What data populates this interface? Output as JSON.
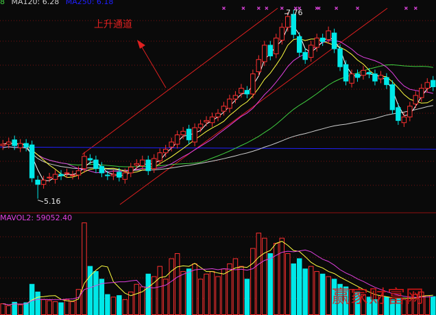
{
  "header": {
    "ma_prev_fragment": "8",
    "ma120_label": "MA120: 6.28",
    "ma250_label": "MA250: 6.18"
  },
  "volume_header": "MAVOL2: 59052.40",
  "annotations": {
    "title": "上升通道",
    "high_label": "7.76",
    "low_label": "5.16"
  },
  "watermark": "赢家财富网",
  "colors": {
    "up": "#ff3030",
    "down": "#00e8e8",
    "ma5": "#ffffff",
    "ma10": "#ffff40",
    "ma20": "#e040e0",
    "ma60": "#40d040",
    "ma120": "#2020ff",
    "ma250": "#d0d0d0",
    "grid": "#7a1010",
    "annotation": "#e02020"
  },
  "chart_data": {
    "type": "candlestick",
    "price_range": [
      5.06,
      7.93
    ],
    "high": 7.76,
    "low": 5.16,
    "closes": [
      5.92,
      5.95,
      5.9,
      5.93,
      5.88,
      5.45,
      5.36,
      5.42,
      5.46,
      5.5,
      5.48,
      5.52,
      5.49,
      5.55,
      5.75,
      5.7,
      5.58,
      5.52,
      5.48,
      5.5,
      5.46,
      5.52,
      5.6,
      5.65,
      5.7,
      5.55,
      5.72,
      5.8,
      5.85,
      5.95,
      6.05,
      6.1,
      5.98,
      6.15,
      6.2,
      6.25,
      6.3,
      6.35,
      6.45,
      6.55,
      6.6,
      6.7,
      6.62,
      6.9,
      7.1,
      7.3,
      7.15,
      7.4,
      7.55,
      7.7,
      7.45,
      7.2,
      7.1,
      7.3,
      7.4,
      7.35,
      7.5,
      7.25,
      7.0,
      6.8,
      6.9,
      6.85,
      6.95,
      6.9,
      6.8,
      6.88,
      6.75,
      6.4,
      6.25,
      6.3,
      6.45,
      6.6,
      6.7,
      6.78,
      6.72
    ],
    "volumes": [
      22000,
      18000,
      25000,
      20000,
      24000,
      60000,
      45000,
      30000,
      28000,
      26000,
      24000,
      30000,
      26000,
      50000,
      180000,
      95000,
      85000,
      70000,
      40000,
      35000,
      38000,
      30000,
      45000,
      60000,
      55000,
      80000,
      75000,
      95000,
      70000,
      110000,
      120000,
      85000,
      90000,
      100000,
      70000,
      80000,
      85000,
      75000,
      90000,
      100000,
      110000,
      95000,
      70000,
      130000,
      160000,
      150000,
      120000,
      140000,
      150000,
      120000,
      100000,
      110000,
      90000,
      95000,
      85000,
      80000,
      75000,
      70000,
      60000,
      55000,
      50000,
      45000,
      40000,
      35000,
      30000,
      38000,
      35000,
      30000,
      32000,
      30000,
      35000,
      40000,
      45000,
      38000,
      36000
    ],
    "signal_markers_at_index": [
      38,
      41,
      44,
      45,
      48,
      50,
      51,
      54,
      54,
      57,
      61,
      69,
      71
    ],
    "mavol2": 59052.4
  }
}
